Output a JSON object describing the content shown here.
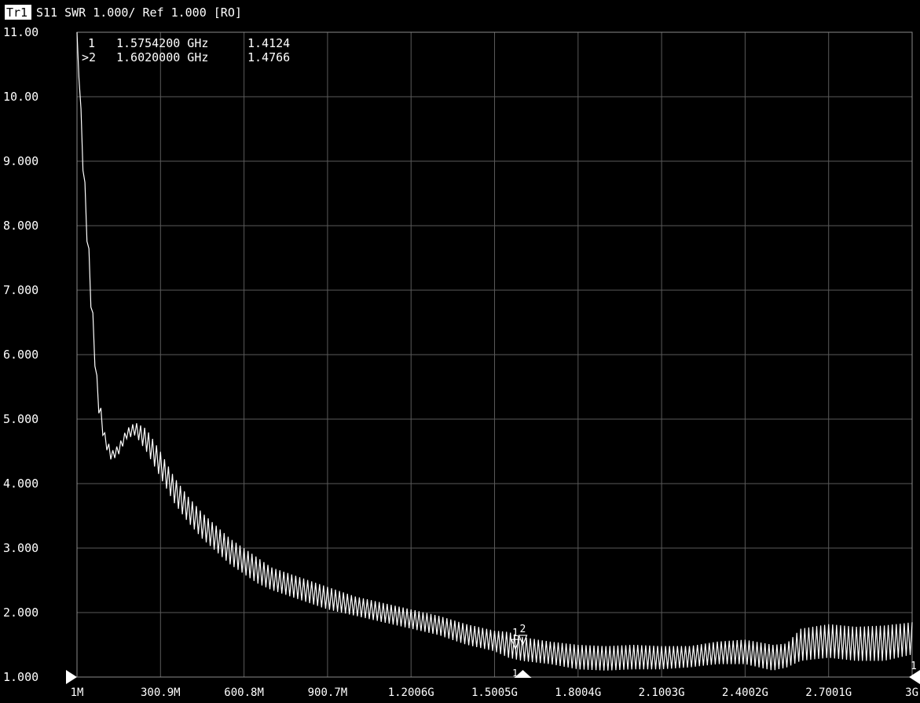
{
  "header": {
    "trace_tag": "Tr1",
    "trace_info": "S11 SWR 1.000/ Ref 1.000 [RO]"
  },
  "markers": [
    {
      "label": "1",
      "freq": "1.5754200 GHz",
      "value": "1.4124",
      "active": false
    },
    {
      "label": ">2",
      "freq": "1.6020000 GHz",
      "value": "1.4766",
      "active": true
    }
  ],
  "colors": {
    "background": "#000000",
    "trace": "#ffffff",
    "grid": "#5a5a5a",
    "text": "#ffffff",
    "tag_bg": "#ffffff",
    "tag_fg": "#000000"
  },
  "icons": {
    "ref_level_indicator": "triangle-right",
    "stop_indicator": "triangle-left",
    "marker_pointer": "triangle-down",
    "active_marker_axis_indicator": "triangle-up"
  },
  "chart_data": {
    "type": "line",
    "title": "",
    "xlabel": "",
    "ylabel": "",
    "x_unit": "GHz",
    "xlim": [
      0.001,
      3.0
    ],
    "ylim": [
      1.0,
      11.0
    ],
    "grid": true,
    "yticks": [
      1.0,
      2.0,
      3.0,
      4.0,
      5.0,
      6.0,
      7.0,
      8.0,
      9.0,
      10.0,
      11.0
    ],
    "ytick_labels": [
      "1.000",
      "2.000",
      "3.000",
      "4.000",
      "5.000",
      "6.000",
      "7.000",
      "8.000",
      "9.000",
      "10.00",
      "11.00"
    ],
    "xtick_labels": [
      "1M",
      "300.9M",
      "600.8M",
      "900.7M",
      "1.2006G",
      "1.5005G",
      "1.8004G",
      "2.1003G",
      "2.4002G",
      "2.7001G",
      "3G"
    ],
    "ref_level": 1.0,
    "stop_marker_label": "1",
    "envelope_upper": [
      [
        0.001,
        11.0
      ],
      [
        0.025,
        9.0
      ],
      [
        0.05,
        7.2
      ],
      [
        0.075,
        5.5
      ],
      [
        0.1,
        4.8
      ],
      [
        0.125,
        4.5
      ],
      [
        0.15,
        4.6
      ],
      [
        0.18,
        4.85
      ],
      [
        0.21,
        4.95
      ],
      [
        0.25,
        4.85
      ],
      [
        0.3,
        4.5
      ],
      [
        0.35,
        4.1
      ],
      [
        0.4,
        3.8
      ],
      [
        0.45,
        3.55
      ],
      [
        0.5,
        3.35
      ],
      [
        0.55,
        3.15
      ],
      [
        0.6,
        3.0
      ],
      [
        0.65,
        2.85
      ],
      [
        0.7,
        2.7
      ],
      [
        0.8,
        2.55
      ],
      [
        0.9,
        2.4
      ],
      [
        1.0,
        2.25
      ],
      [
        1.1,
        2.15
      ],
      [
        1.2,
        2.05
      ],
      [
        1.3,
        1.95
      ],
      [
        1.4,
        1.82
      ],
      [
        1.5,
        1.72
      ],
      [
        1.55,
        1.7
      ],
      [
        1.6,
        1.62
      ],
      [
        1.7,
        1.55
      ],
      [
        1.8,
        1.5
      ],
      [
        1.9,
        1.48
      ],
      [
        2.0,
        1.5
      ],
      [
        2.1,
        1.48
      ],
      [
        2.2,
        1.48
      ],
      [
        2.3,
        1.55
      ],
      [
        2.4,
        1.58
      ],
      [
        2.5,
        1.5
      ],
      [
        2.55,
        1.52
      ],
      [
        2.6,
        1.75
      ],
      [
        2.7,
        1.82
      ],
      [
        2.8,
        1.78
      ],
      [
        2.9,
        1.8
      ],
      [
        3.0,
        1.85
      ]
    ],
    "envelope_lower": [
      [
        0.001,
        11.0
      ],
      [
        0.025,
        8.6
      ],
      [
        0.05,
        6.8
      ],
      [
        0.075,
        5.2
      ],
      [
        0.1,
        4.6
      ],
      [
        0.125,
        4.35
      ],
      [
        0.15,
        4.45
      ],
      [
        0.18,
        4.7
      ],
      [
        0.21,
        4.75
      ],
      [
        0.25,
        4.5
      ],
      [
        0.3,
        4.1
      ],
      [
        0.35,
        3.7
      ],
      [
        0.4,
        3.4
      ],
      [
        0.45,
        3.15
      ],
      [
        0.5,
        2.95
      ],
      [
        0.55,
        2.75
      ],
      [
        0.6,
        2.6
      ],
      [
        0.65,
        2.45
      ],
      [
        0.7,
        2.35
      ],
      [
        0.8,
        2.2
      ],
      [
        0.9,
        2.05
      ],
      [
        1.0,
        1.95
      ],
      [
        1.1,
        1.85
      ],
      [
        1.2,
        1.75
      ],
      [
        1.3,
        1.65
      ],
      [
        1.4,
        1.5
      ],
      [
        1.5,
        1.4
      ],
      [
        1.55,
        1.3
      ],
      [
        1.6,
        1.25
      ],
      [
        1.7,
        1.2
      ],
      [
        1.8,
        1.12
      ],
      [
        1.9,
        1.1
      ],
      [
        2.0,
        1.12
      ],
      [
        2.1,
        1.12
      ],
      [
        2.2,
        1.15
      ],
      [
        2.3,
        1.2
      ],
      [
        2.4,
        1.2
      ],
      [
        2.5,
        1.1
      ],
      [
        2.55,
        1.15
      ],
      [
        2.6,
        1.25
      ],
      [
        2.7,
        1.3
      ],
      [
        2.8,
        1.25
      ],
      [
        2.9,
        1.25
      ],
      [
        3.0,
        1.35
      ]
    ],
    "ripple_cycles": 210,
    "marker_points": [
      {
        "label": "1",
        "x": 1.57542,
        "y": 1.4124
      },
      {
        "label": "2",
        "x": 1.602,
        "y": 1.4766
      }
    ]
  }
}
